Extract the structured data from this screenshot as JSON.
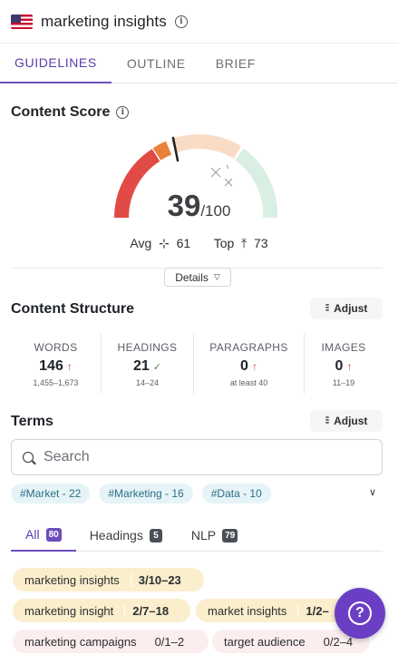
{
  "header": {
    "title": "marketing insights",
    "flag_icon": "us-flag-icon",
    "info_icon": "info-icon"
  },
  "tabs": [
    {
      "label": "GUIDELINES",
      "active": true
    },
    {
      "label": "OUTLINE",
      "active": false
    },
    {
      "label": "BRIEF",
      "active": false
    }
  ],
  "content_score": {
    "title": "Content Score",
    "value": "39",
    "max": "/100",
    "score_fraction": 0.39,
    "avg_label": "Avg",
    "avg_value": "61",
    "top_label": "Top",
    "top_value": "73",
    "details_label": "Details",
    "colors": {
      "low": "#e24b45",
      "mid": "#e8823a",
      "peach": "#f9dcc6",
      "high": "#d9efe3"
    }
  },
  "content_structure": {
    "title": "Content Structure",
    "adjust_label": "Adjust",
    "stats": [
      {
        "label": "WORDS",
        "value": "146",
        "indicator": "↑",
        "range": "1,455–1,673"
      },
      {
        "label": "HEADINGS",
        "value": "21",
        "indicator": "✓",
        "range": "14–24"
      },
      {
        "label": "PARAGRAPHS",
        "value": "0",
        "indicator": "↑",
        "range": "at least 40"
      },
      {
        "label": "IMAGES",
        "value": "0",
        "indicator": "↑",
        "range": "11–19"
      }
    ]
  },
  "terms": {
    "title": "Terms",
    "adjust_label": "Adjust",
    "search_placeholder": "Search",
    "tags": [
      "#Market - 22",
      "#Marketing - 16",
      "#Data - 10"
    ],
    "subtabs": [
      {
        "label": "All",
        "count": "80",
        "active": true
      },
      {
        "label": "Headings",
        "count": "5",
        "active": false
      },
      {
        "label": "NLP",
        "count": "79",
        "active": false
      }
    ],
    "items": [
      {
        "name": "marketing insights",
        "count": "3/10–23",
        "color": "#fbeecd"
      },
      {
        "name": "marketing insight",
        "count": "2/7–18",
        "color": "#fbeecd"
      },
      {
        "name": "market insights",
        "count": "1/2–",
        "color": "#fbeecd"
      },
      {
        "name": "marketing campaigns",
        "count": "0/1–2",
        "color": "#fcedee"
      },
      {
        "name": "target audience",
        "count": "0/2–4",
        "color": "#fcedee"
      }
    ]
  },
  "help": {
    "icon": "question-mark-icon"
  }
}
